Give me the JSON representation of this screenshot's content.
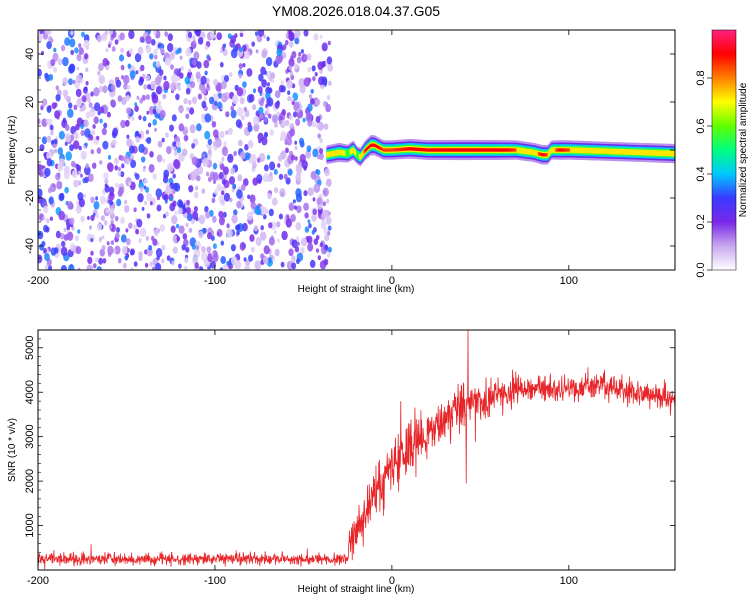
{
  "title": "YM08.2026.018.04.37.G05",
  "chart_data": [
    {
      "type": "heatmap",
      "panel": "spectrogram",
      "xlabel": "Height of straight line (km)",
      "ylabel": "Frequency (Hz)",
      "xlim": [
        -200,
        160
      ],
      "ylim": [
        -50,
        50
      ],
      "xticks": [
        -200,
        -100,
        0,
        100
      ],
      "xtick_labels": [
        "-200",
        "-100",
        "0",
        "100"
      ],
      "yticks": [
        -40,
        -20,
        0,
        20,
        40
      ],
      "ytick_labels": [
        "-40",
        "-20",
        "0",
        "20",
        "40"
      ],
      "noise_region_x": [
        -200,
        -37
      ],
      "signal_start_x": -37,
      "ridge": {
        "x": [
          -37,
          -30,
          -25,
          -22,
          -20,
          -18,
          -15,
          -12,
          -10,
          -5,
          0,
          10,
          20,
          40,
          60,
          70,
          80,
          85,
          88,
          90,
          95,
          100,
          120,
          140,
          160
        ],
        "freq": [
          -2,
          -1,
          -1.5,
          0,
          -2,
          -3,
          0,
          2,
          2,
          0,
          0,
          0.5,
          0,
          0,
          0,
          0,
          -1,
          -2,
          -2,
          0,
          0,
          0,
          -0.5,
          -1,
          -1.5
        ],
        "amp": [
          0.7,
          0.8,
          0.6,
          0.8,
          0.6,
          0.7,
          0.9,
          1.0,
          0.95,
          0.85,
          0.85,
          0.9,
          0.95,
          1.0,
          0.95,
          0.85,
          0.8,
          0.9,
          0.85,
          0.8,
          0.9,
          0.85,
          0.8,
          0.8,
          0.85
        ]
      },
      "colorbar": {
        "label": "Normalized spectral amplitude",
        "range": [
          0,
          1
        ],
        "ticks": [
          0.0,
          0.2,
          0.4,
          0.6,
          0.8
        ],
        "tick_labels": [
          "0.0",
          "0.2",
          "0.4",
          "0.6",
          "0.8"
        ],
        "colors": [
          "#ffffff",
          "#c8a8f0",
          "#7a28e8",
          "#3a3aff",
          "#00c8ff",
          "#00ff80",
          "#60ff00",
          "#ffff00",
          "#ff8000",
          "#ff0000",
          "#ff2080"
        ]
      }
    },
    {
      "type": "line",
      "panel": "snr",
      "xlabel": "Height of straight line (km)",
      "ylabel": "SNR (10 * v/v)",
      "xlim": [
        -200,
        160
      ],
      "ylim": [
        0,
        5400
      ],
      "xticks": [
        -200,
        -100,
        0,
        100
      ],
      "xtick_labels": [
        "-200",
        "-100",
        "0",
        "100"
      ],
      "yticks": [
        1000,
        2000,
        3000,
        4000,
        5000
      ],
      "ytick_labels": [
        "1000",
        "2000",
        "3000",
        "4000",
        "5000"
      ],
      "line_color": "#e8262a",
      "trend": {
        "x": [
          -200,
          -25,
          -24,
          -15,
          -5,
          0,
          10,
          20,
          30,
          40,
          45,
          60,
          80,
          100,
          120,
          140,
          160
        ],
        "y": [
          250,
          250,
          600,
          1300,
          2000,
          2300,
          2700,
          3000,
          3400,
          3700,
          3800,
          3950,
          4050,
          4100,
          4150,
          4000,
          3850
        ]
      },
      "noise": {
        "x": [
          -200,
          -25,
          -24,
          0,
          40,
          80,
          160
        ],
        "sd": [
          70,
          70,
          250,
          300,
          300,
          150,
          150
        ]
      },
      "spikes": [
        {
          "x": 43,
          "y": 5400
        },
        {
          "x": 42,
          "y": 1950
        },
        {
          "x": 5,
          "y": 3800
        },
        {
          "x": -170,
          "y": 580
        }
      ]
    }
  ]
}
